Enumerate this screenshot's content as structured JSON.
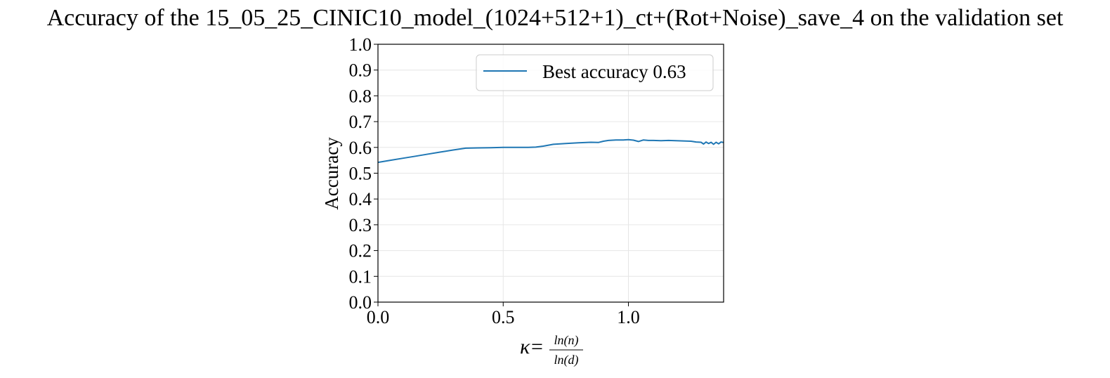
{
  "chart_data": {
    "type": "line",
    "title": "Accuracy of the 15_05_25_CINIC10_model_(1024+512+1)_ct+(Rot+Noise)_save_4 on the validation set",
    "xlabel": {
      "symbol": "κ",
      "equals": "=",
      "numerator": "ln(n)",
      "denominator": "ln(d)"
    },
    "ylabel": "Accuracy",
    "xlim": [
      0.0,
      1.38
    ],
    "ylim": [
      0.0,
      1.0
    ],
    "xticks": [
      0.0,
      0.5,
      1.0
    ],
    "xtick_labels": [
      "0.0",
      "0.5",
      "1.0"
    ],
    "yticks": [
      0.0,
      0.1,
      0.2,
      0.3,
      0.4,
      0.5,
      0.6,
      0.7,
      0.8,
      0.9,
      1.0
    ],
    "ytick_labels": [
      "0.0",
      "0.1",
      "0.2",
      "0.3",
      "0.4",
      "0.5",
      "0.6",
      "0.7",
      "0.8",
      "0.9",
      "1.0"
    ],
    "grid": true,
    "legend_position": "top-right",
    "series": [
      {
        "name": "Best accuracy 0.63",
        "color": "#1f77b4",
        "x": [
          0.0,
          0.05,
          0.1,
          0.15,
          0.2,
          0.25,
          0.3,
          0.35,
          0.4,
          0.45,
          0.5,
          0.55,
          0.6,
          0.63,
          0.66,
          0.7,
          0.75,
          0.8,
          0.85,
          0.88,
          0.9,
          0.92,
          0.95,
          0.98,
          1.0,
          1.02,
          1.04,
          1.06,
          1.08,
          1.1,
          1.13,
          1.16,
          1.19,
          1.22,
          1.25,
          1.27,
          1.29,
          1.3,
          1.31,
          1.32,
          1.33,
          1.34,
          1.35,
          1.36,
          1.37,
          1.38
        ],
        "y": [
          0.542,
          0.55,
          0.558,
          0.566,
          0.574,
          0.582,
          0.59,
          0.597,
          0.598,
          0.599,
          0.6,
          0.6,
          0.6,
          0.601,
          0.605,
          0.612,
          0.615,
          0.618,
          0.62,
          0.619,
          0.624,
          0.627,
          0.629,
          0.629,
          0.63,
          0.628,
          0.623,
          0.629,
          0.627,
          0.627,
          0.626,
          0.627,
          0.626,
          0.625,
          0.624,
          0.621,
          0.62,
          0.613,
          0.621,
          0.615,
          0.62,
          0.612,
          0.62,
          0.614,
          0.621,
          0.619
        ]
      }
    ]
  }
}
